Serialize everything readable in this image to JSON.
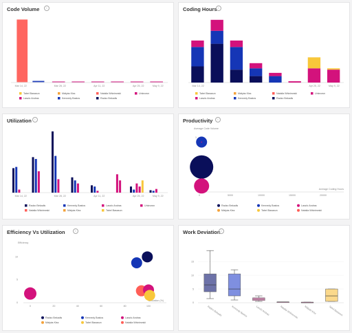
{
  "colors": {
    "navy": "#0a0f5a",
    "blue": "#1536b6",
    "magenta": "#d3127c",
    "orange": "#f4a23a",
    "salmon": "#ff5e57",
    "yellow": "#f8c73a",
    "bg": "#f3f3f4",
    "grid": "#e6e6e6"
  },
  "panels": {
    "code_volume": {
      "title": "Code Volume",
      "info_icon": "info-icon"
    },
    "coding_hours": {
      "title": "Coding Hours",
      "info_icon": "info-icon"
    },
    "utilization": {
      "title": "Utilization",
      "info_icon": "info-icon"
    },
    "productivity": {
      "title": "Productivity",
      "info_icon": "info-icon"
    },
    "efficiency": {
      "title": "Efficiency Vs Utilization",
      "info_icon": "info-icon"
    },
    "work_deviation": {
      "title": "Work Deviation",
      "info_icon": "info-icon"
    }
  },
  "chart_data": [
    {
      "id": "code_volume",
      "type": "bar",
      "categories": [
        "Mar 14, 22",
        "Mar 21, 22",
        "Mar 28, 22",
        "Apr 04, 22",
        "Apr 11, 22",
        "Apr 18, 22",
        "Apr 25, 22",
        "May 2, 22"
      ],
      "xtick_labels": [
        "Mar 14, 22",
        "",
        "Mar 28, 22",
        "",
        "Apr 11, 22",
        "",
        "Apr 25, 22",
        "May 9, 22"
      ],
      "ylim": [
        0,
        100
      ],
      "series": [
        {
          "name": "Tabel Basasun",
          "color": "#f8c73a",
          "values": [
            0,
            0,
            0,
            0,
            0,
            0,
            0,
            0
          ]
        },
        {
          "name": "Mátyás Kiss",
          "color": "#f4a23a",
          "values": [
            0,
            0,
            0,
            0,
            0,
            0,
            0,
            0
          ]
        },
        {
          "name": "Natalia Wiśniewski",
          "color": "#ff5e57",
          "values": [
            100,
            0,
            0,
            0,
            0,
            0,
            0,
            0
          ]
        },
        {
          "name": "Unknown",
          "color": "#d3127c",
          "values": [
            0,
            0,
            0,
            0,
            0,
            0,
            0,
            0
          ]
        },
        {
          "name": "Laszlo Andras",
          "color": "#d3127c",
          "values": [
            0,
            0,
            0,
            0,
            0,
            0,
            0,
            0
          ]
        },
        {
          "name": "Kennedy Bastos",
          "color": "#1536b6",
          "values": [
            0,
            2,
            1,
            1,
            1,
            1,
            1,
            1
          ]
        },
        {
          "name": "Radzo Bekadis",
          "color": "#0a0f5a",
          "values": [
            0,
            0,
            0,
            0,
            0,
            0,
            0,
            0
          ]
        }
      ],
      "legend": [
        "Tabel Basasun",
        "Mátyás Kiss",
        "Natalia Wiśniewski",
        "Unknown",
        "Laszlo Andras",
        "Kennedy Bastos",
        "Radzo Bekadis"
      ],
      "legend_colors": [
        "#f8c73a",
        "#f4a23a",
        "#ff5e57",
        "#d3127c",
        "#d3127c",
        "#1536b6",
        "#0a0f5a"
      ]
    },
    {
      "id": "coding_hours",
      "type": "bar",
      "stacked": true,
      "categories": [
        "Mar 14, 22",
        "Mar 21, 22",
        "Mar 28, 22",
        "Apr 04, 22",
        "Apr 11, 22",
        "Apr 18, 22",
        "Apr 25, 22",
        "May 2, 22"
      ],
      "xtick_labels": [
        "Mar 14, 22",
        "",
        "",
        "",
        "",
        "",
        "Apr 25, 22",
        "May 9, 22"
      ],
      "ylim": [
        0,
        100
      ],
      "series": [
        {
          "name": "Radzo Bekadis",
          "color": "#0a0f5a",
          "values": [
            25,
            60,
            20,
            10,
            0,
            0,
            0,
            0
          ]
        },
        {
          "name": "Kennedy Bastos",
          "color": "#1536b6",
          "values": [
            30,
            20,
            35,
            12,
            10,
            0,
            0,
            0
          ]
        },
        {
          "name": "Laszlo Andras",
          "color": "#d3127c",
          "values": [
            10,
            17,
            10,
            8,
            5,
            2,
            22,
            20
          ]
        },
        {
          "name": "Tabel Basasun",
          "color": "#f8c73a",
          "values": [
            0,
            0,
            0,
            0,
            0,
            0,
            17,
            2
          ]
        }
      ],
      "legend": [
        "Tabel Basasun",
        "Mátyás Kiss",
        "Natalia Wiśniewski",
        "Unknown",
        "Laszlo Andras",
        "Kennedy Bastos",
        "Radzo Bekadis"
      ],
      "legend_colors": [
        "#f8c73a",
        "#f4a23a",
        "#ff5e57",
        "#d3127c",
        "#d3127c",
        "#1536b6",
        "#0a0f5a"
      ]
    },
    {
      "id": "utilization",
      "type": "bar",
      "categories": [
        "Mar 14, 22",
        "Mar 21, 22",
        "Mar 28, 22",
        "Apr 04, 22",
        "Apr 11, 22",
        "Apr 18, 22",
        "Apr 25, 22",
        "May 2, 22"
      ],
      "xtick_labels": [
        "Mar 14, 22",
        "",
        "Mar 28, 22",
        "",
        "Apr 11, 22",
        "",
        "Apr 25, 22",
        "May 9, 22"
      ],
      "ylim": [
        0,
        100
      ],
      "series": [
        {
          "name": "Radzo Bekadis",
          "color": "#0a0f5a",
          "values": [
            40,
            58,
            100,
            25,
            12,
            0,
            10,
            4
          ]
        },
        {
          "name": "Kennedy Bastos",
          "color": "#1536b6",
          "values": [
            42,
            55,
            60,
            20,
            10,
            0,
            5,
            3
          ]
        },
        {
          "name": "Laszlo Andras",
          "color": "#d3127c",
          "values": [
            5,
            35,
            22,
            15,
            3,
            30,
            15,
            6
          ]
        },
        {
          "name": "Unknown",
          "color": "#d3127c",
          "values": [
            0,
            0,
            0,
            0,
            0,
            20,
            10,
            0
          ]
        },
        {
          "name": "Tabel Basasun",
          "color": "#f8c73a",
          "values": [
            0,
            0,
            0,
            0,
            0,
            0,
            20,
            0
          ]
        }
      ],
      "legend": [
        "Radzo Bekadis",
        "Kennedy Bastos",
        "Laszlo Andras",
        "Unknown",
        "Natalia Wiśniewski",
        "Mátyás Kiss",
        "Tabel Basasun"
      ],
      "legend_colors": [
        "#0a0f5a",
        "#1536b6",
        "#d3127c",
        "#d3127c",
        "#ff5e57",
        "#f4a23a",
        "#f8c73a"
      ]
    },
    {
      "id": "productivity",
      "type": "scatter",
      "ylabel": "Average Code Volume",
      "xlabel": "Average Coding Hours",
      "xticks": [
        "0",
        "5000",
        "10000",
        "15000",
        "20000"
      ],
      "yticks": [
        "0",
        "0.5",
        "1"
      ],
      "xlim": [
        0,
        20000
      ],
      "ylim": [
        0,
        1.2
      ],
      "points": [
        {
          "name": "Radzo Bekadis",
          "color": "#0a0f5a",
          "x": 300,
          "y": 0.5,
          "r": 17
        },
        {
          "name": "Kennedy Bastos",
          "color": "#1536b6",
          "x": 300,
          "y": 1.0,
          "r": 8
        },
        {
          "name": "Laszlo Andras",
          "color": "#d3127c",
          "x": 300,
          "y": 0.12,
          "r": 11
        },
        {
          "name": "Unknown",
          "color": "#d3127c",
          "x": 300,
          "y": 1.0,
          "r": 0.8
        }
      ],
      "legend": [
        "Radzo Bekadis",
        "Kennedy Bastos",
        "Laszlo Andras",
        "Mátyás Kiss",
        "Tabel Basasun",
        "Natalia Wiśniewski"
      ],
      "legend_colors": [
        "#0a0f5a",
        "#1536b6",
        "#d3127c",
        "#f4a23a",
        "#f8c73a",
        "#ff5e57"
      ]
    },
    {
      "id": "efficiency",
      "type": "scatter",
      "ylabel": "Efficiency",
      "xlabel": "Utilization (%)",
      "xticks": [
        "0",
        "20",
        "40",
        "60",
        "80",
        "100"
      ],
      "yticks": [
        "0",
        "5",
        "10"
      ],
      "xlim": [
        0,
        100
      ],
      "ylim": [
        0,
        12
      ],
      "points": [
        {
          "name": "Radzo Bekadis",
          "color": "#0a0f5a",
          "x": 99,
          "y": 10,
          "r": 8
        },
        {
          "name": "Kennedy Bastos",
          "color": "#1536b6",
          "x": 90,
          "y": 8.7,
          "r": 8
        },
        {
          "name": "Laszlo Andras",
          "color": "#d3127c",
          "x": 0,
          "y": 2,
          "r": 9
        },
        {
          "name": "Natalia Wiśniewski",
          "color": "#ff5e57",
          "x": 94,
          "y": 2.6,
          "r": 8
        },
        {
          "name": "Unknown",
          "color": "#d3127c",
          "x": 100,
          "y": 2.8,
          "r": 8
        },
        {
          "name": "Tabel Basasun",
          "color": "#f8c73a",
          "x": 101,
          "y": 1.6,
          "r": 8
        }
      ],
      "legend": [
        "Radzo Bekadis",
        "Kennedy Bastos",
        "Laszlo Andras",
        "Mátyás Kiss",
        "Tabel Basasun",
        "Natalia Wiśniewski"
      ],
      "legend_colors": [
        "#0a0f5a",
        "#1536b6",
        "#d3127c",
        "#f4a23a",
        "#f8c73a",
        "#ff5e57"
      ]
    },
    {
      "id": "work_deviation",
      "type": "box",
      "categories": [
        "Radzo Bekadis",
        "Kennedy Bastos",
        "Laszlo Andras",
        "Natalia Wiśniewski",
        "Mátyás Kiss",
        "Tabel Basasun"
      ],
      "yticks": [
        "0",
        "5",
        "10",
        "15"
      ],
      "ylim": [
        0,
        20
      ],
      "boxes": [
        {
          "name": "Radzo Bekadis",
          "color": "#6d72a8",
          "min": 1.5,
          "q1": 4,
          "median": 6.5,
          "q3": 10.5,
          "max": 19
        },
        {
          "name": "Kennedy Bastos",
          "color": "#7f8fe0",
          "min": 1,
          "q1": 2.5,
          "median": 5,
          "q3": 10.5,
          "max": 12
        },
        {
          "name": "Laszlo Andras",
          "color": "#e89ac7",
          "min": 0.5,
          "q1": 0.8,
          "median": 1.3,
          "q3": 1.8,
          "max": 2.5
        },
        {
          "name": "Natalia Wiśniewski",
          "color": "#e89ac7",
          "min": 0.3,
          "q1": 0.3,
          "median": 0.3,
          "q3": 0.3,
          "max": 0.3
        },
        {
          "name": "Mátyás Kiss",
          "color": "#e89ac7",
          "min": 0.2,
          "q1": 0.2,
          "median": 0.2,
          "q3": 0.2,
          "max": 0.2
        },
        {
          "name": "Tabel Basasun",
          "color": "#fbd98c",
          "min": 0.5,
          "q1": 0.5,
          "median": 2.5,
          "q3": 5,
          "max": 5
        }
      ]
    }
  ]
}
